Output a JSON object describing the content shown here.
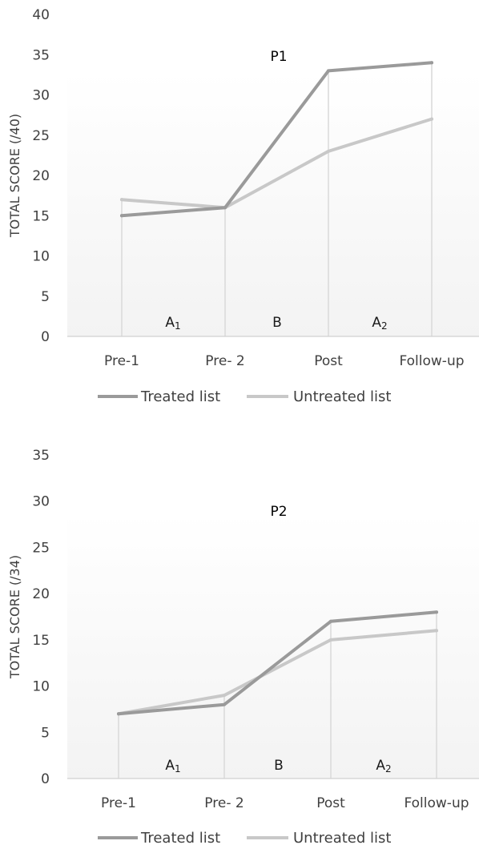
{
  "chart_data": [
    {
      "type": "line",
      "title": "P1",
      "xlabel": "",
      "ylabel": "TOTAL SCORE (/40)",
      "categories": [
        "Pre-1",
        "Pre- 2",
        "Post",
        "Follow-up"
      ],
      "ylim": [
        0,
        40
      ],
      "yticks": [
        0,
        5,
        10,
        15,
        20,
        25,
        30,
        35,
        40
      ],
      "grid": false,
      "legend_position": "bottom",
      "series": [
        {
          "name": "Treated list",
          "color": "#9a9a9a",
          "values": [
            15,
            16,
            33,
            34
          ]
        },
        {
          "name": "Untreated list",
          "color": "#c8c8c8",
          "values": [
            17,
            16,
            23,
            27
          ]
        }
      ],
      "phases": [
        {
          "label": "A",
          "sub": "1"
        },
        {
          "label": "B",
          "sub": ""
        },
        {
          "label": "A",
          "sub": "2"
        }
      ]
    },
    {
      "type": "line",
      "title": "P2",
      "xlabel": "",
      "ylabel": "TOTAL SCORE (/34)",
      "categories": [
        "Pre-1",
        "Pre- 2",
        "Post",
        "Follow-up"
      ],
      "ylim": [
        0,
        35
      ],
      "yticks": [
        0,
        5,
        10,
        15,
        20,
        25,
        30,
        35
      ],
      "grid": false,
      "legend_position": "bottom",
      "series": [
        {
          "name": "Treated list",
          "color": "#9a9a9a",
          "values": [
            7,
            8,
            17,
            18
          ]
        },
        {
          "name": "Untreated list",
          "color": "#c8c8c8",
          "values": [
            7,
            9,
            15,
            16
          ]
        }
      ],
      "phases": [
        {
          "label": "A",
          "sub": "1"
        },
        {
          "label": "B",
          "sub": ""
        },
        {
          "label": "A",
          "sub": "2"
        }
      ]
    }
  ]
}
